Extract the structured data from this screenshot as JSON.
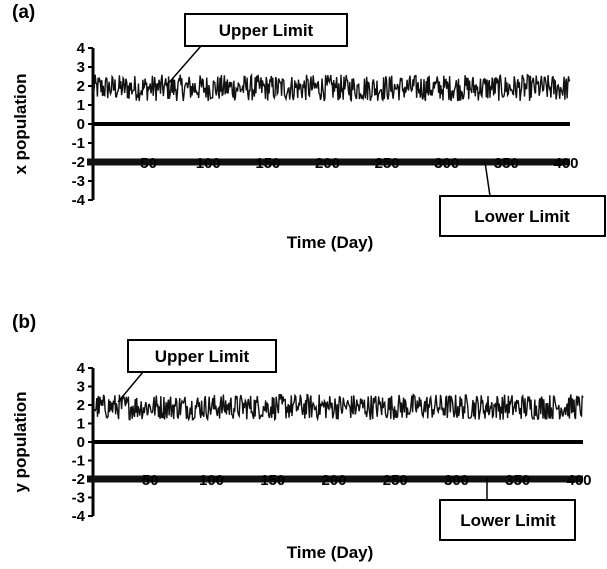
{
  "chart_data": [
    {
      "type": "line",
      "panel_label": "(a)",
      "xlabel": "Time (Day)",
      "ylabel": "x population",
      "xlim": [
        0,
        400
      ],
      "ylim": [
        -4,
        4
      ],
      "x_ticks": [
        "50",
        "100",
        "150",
        "200",
        "250",
        "300",
        "350",
        "400"
      ],
      "y_ticks": [
        "4",
        "3",
        "2",
        "1",
        "0",
        "-1",
        "-2",
        "-3",
        "-4"
      ],
      "series": [
        {
          "style": "noisy band",
          "mean": 1.9,
          "range": [
            1.2,
            2.6
          ],
          "color": "#111111"
        },
        {
          "style": "constant",
          "value": -2,
          "color": "#111111"
        }
      ],
      "annotations": [
        {
          "text": "Upper Limit",
          "points_to": {
            "x": 10,
            "y": 2.5
          }
        },
        {
          "text": "Lower Limit",
          "points_to": {
            "x": 300,
            "y": -2
          }
        }
      ],
      "grid": false
    },
    {
      "type": "line",
      "panel_label": "(b)",
      "xlabel": "Time (Day)",
      "ylabel": "y population",
      "xlim": [
        0,
        400
      ],
      "ylim": [
        -4,
        4
      ],
      "x_ticks": [
        "50",
        "100",
        "150",
        "200",
        "250",
        "300",
        "350",
        "400"
      ],
      "y_ticks": [
        "4",
        "3",
        "2",
        "1",
        "0",
        "-1",
        "-2",
        "-3",
        "-4"
      ],
      "series": [
        {
          "style": "noisy band",
          "mean": 1.9,
          "range": [
            1.2,
            2.6
          ],
          "color": "#111111"
        },
        {
          "style": "constant",
          "value": -2,
          "color": "#111111"
        }
      ],
      "annotations": [
        {
          "text": "Upper Limit",
          "points_to": {
            "x": 2,
            "y": 2.5
          }
        },
        {
          "text": "Lower Limit",
          "points_to": {
            "x": 300,
            "y": -2
          }
        }
      ],
      "grid": false
    }
  ]
}
